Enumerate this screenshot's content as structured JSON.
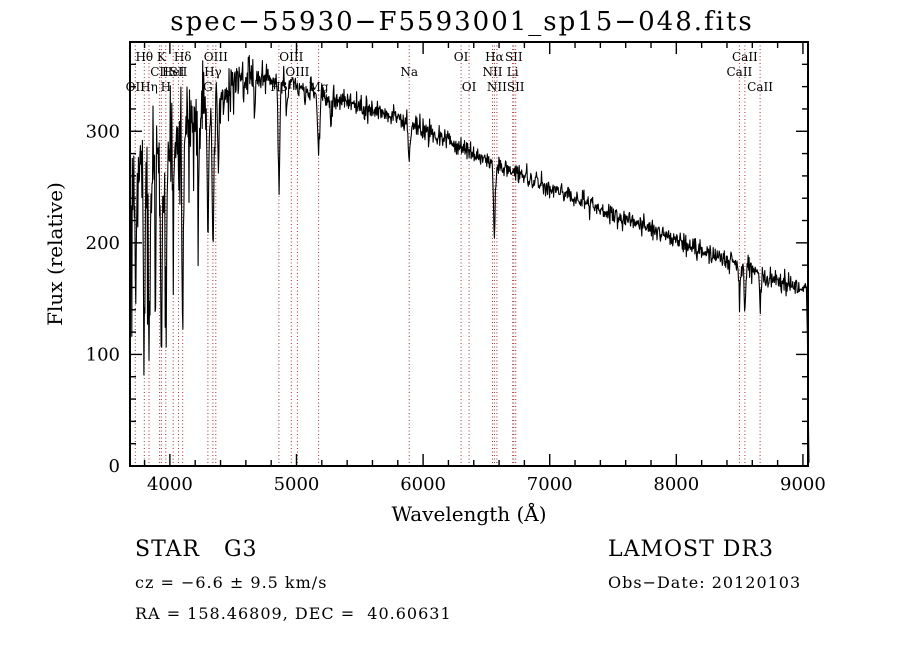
{
  "figure": {
    "title": "spec−55930−F5593001_sp15−048.fits"
  },
  "chart_data": {
    "type": "line",
    "title": "spec−55930−F5593001_sp15−048.fits",
    "xlabel": "Wavelength (Å)",
    "ylabel": "Flux (relative)",
    "xlim": [
      3685,
      9040
    ],
    "ylim": [
      0,
      380
    ],
    "xticks": [
      4000,
      5000,
      6000,
      7000,
      8000,
      9000
    ],
    "yticks": [
      0,
      100,
      200,
      300
    ],
    "x_minor_step": 200,
    "y_minor_step": 20,
    "grid": false,
    "line_color": "#000000",
    "marker_color": "#a03030",
    "continuum": [
      [
        3690,
        252
      ],
      [
        3800,
        262
      ],
      [
        3900,
        272
      ],
      [
        4000,
        288
      ],
      [
        4100,
        302
      ],
      [
        4200,
        314
      ],
      [
        4300,
        325
      ],
      [
        4400,
        334
      ],
      [
        4500,
        342
      ],
      [
        4600,
        348
      ],
      [
        4700,
        350
      ],
      [
        4800,
        348
      ],
      [
        4900,
        344
      ],
      [
        5000,
        340
      ],
      [
        5200,
        333
      ],
      [
        5400,
        327
      ],
      [
        5600,
        320
      ],
      [
        5800,
        311
      ],
      [
        6000,
        302
      ],
      [
        6200,
        291
      ],
      [
        6400,
        280
      ],
      [
        6600,
        269
      ],
      [
        6800,
        259
      ],
      [
        7000,
        250
      ],
      [
        7200,
        240
      ],
      [
        7400,
        230
      ],
      [
        7600,
        221
      ],
      [
        7800,
        212
      ],
      [
        8000,
        203
      ],
      [
        8200,
        193
      ],
      [
        8400,
        184
      ],
      [
        8600,
        175
      ],
      [
        8800,
        166
      ],
      [
        9000,
        158
      ],
      [
        9040,
        155
      ]
    ],
    "noise_sigma": [
      [
        3690,
        38
      ],
      [
        3850,
        34
      ],
      [
        4000,
        26
      ],
      [
        4200,
        18
      ],
      [
        4400,
        12
      ],
      [
        4700,
        8
      ],
      [
        5000,
        6
      ],
      [
        5500,
        5
      ],
      [
        6000,
        4.5
      ],
      [
        6500,
        4
      ],
      [
        7000,
        4
      ],
      [
        7500,
        4
      ],
      [
        8000,
        4.5
      ],
      [
        8600,
        5
      ],
      [
        9040,
        5
      ]
    ],
    "blue_spike_amplitude": [
      [
        3690,
        120
      ],
      [
        3900,
        115
      ],
      [
        4100,
        85
      ],
      [
        4300,
        55
      ],
      [
        4500,
        25
      ]
    ],
    "absorption_lines": [
      {
        "name": "OII",
        "wavelength": 3727,
        "depth": 70,
        "sigma": 6
      },
      {
        "name": "Hθ",
        "wavelength": 3798,
        "depth": 130,
        "sigma": 6
      },
      {
        "name": "Hη",
        "wavelength": 3835,
        "depth": 145,
        "sigma": 6
      },
      {
        "name": "CaII K",
        "wavelength": 3933,
        "depth": 165,
        "sigma": 7
      },
      {
        "name": "CaII H",
        "wavelength": 3968,
        "depth": 155,
        "sigma": 7
      },
      {
        "name": "HeI",
        "wavelength": 4026,
        "depth": 55,
        "sigma": 5
      },
      {
        "name": "SII",
        "wavelength": 4068,
        "depth": 50,
        "sigma": 5
      },
      {
        "name": "Hδ",
        "wavelength": 4101,
        "depth": 150,
        "sigma": 7
      },
      {
        "name": "CaI",
        "wavelength": 4226,
        "depth": 80,
        "sigma": 5
      },
      {
        "name": "G band",
        "wavelength": 4300,
        "depth": 95,
        "sigma": 8
      },
      {
        "name": "Hγ",
        "wavelength": 4340,
        "depth": 135,
        "sigma": 7
      },
      {
        "name": "FeI",
        "wavelength": 4383,
        "depth": 75,
        "sigma": 5
      },
      {
        "name": "FeI",
        "wavelength": 4668,
        "depth": 35,
        "sigma": 5
      },
      {
        "name": "Hβ",
        "wavelength": 4861,
        "depth": 95,
        "sigma": 7
      },
      {
        "name": "FeI",
        "wavelength": 4920,
        "depth": 30,
        "sigma": 5
      },
      {
        "name": "Mg b",
        "wavelength": 5175,
        "depth": 50,
        "sigma": 9
      },
      {
        "name": "FeI",
        "wavelength": 5270,
        "depth": 28,
        "sigma": 6
      },
      {
        "name": "Na D",
        "wavelength": 5890,
        "depth": 32,
        "sigma": 7
      },
      {
        "name": "Hα",
        "wavelength": 6563,
        "depth": 65,
        "sigma": 7
      },
      {
        "name": "CaII",
        "wavelength": 8498,
        "depth": 28,
        "sigma": 6
      },
      {
        "name": "CaII",
        "wavelength": 8542,
        "depth": 38,
        "sigma": 6
      },
      {
        "name": "CaII",
        "wavelength": 8662,
        "depth": 32,
        "sigma": 6
      }
    ],
    "right_edge_drop": {
      "start": 9030,
      "end": 9048
    },
    "spectral_markers": [
      {
        "label": "OII",
        "wavelength": 3727,
        "row": 3
      },
      {
        "label": "Hθ",
        "wavelength": 3798,
        "row": 1
      },
      {
        "label": "Hη",
        "wavelength": 3835,
        "row": 3
      },
      {
        "label": "CII",
        "wavelength": 3919,
        "row": 2
      },
      {
        "label": "K",
        "wavelength": 3933,
        "row": 1
      },
      {
        "label": "H",
        "wavelength": 3968,
        "row": 3
      },
      {
        "label": "HeI",
        "wavelength": 4026,
        "row": 2
      },
      {
        "label": "SII",
        "wavelength": 4068,
        "row": 2
      },
      {
        "label": "Hδ",
        "wavelength": 4101,
        "row": 1
      },
      {
        "label": "G",
        "wavelength": 4300,
        "row": 3
      },
      {
        "label": "Hγ",
        "wavelength": 4340,
        "row": 2
      },
      {
        "label": "OIII",
        "wavelength": 4363,
        "row": 1
      },
      {
        "label": "Hβ",
        "wavelength": 4861,
        "row": 3
      },
      {
        "label": "OIII",
        "wavelength": 4959,
        "row": 1
      },
      {
        "label": "OIII",
        "wavelength": 5007,
        "row": 2
      },
      {
        "label": "Mg",
        "wavelength": 5175,
        "row": 3
      },
      {
        "label": "Na",
        "wavelength": 5890,
        "row": 2
      },
      {
        "label": "OI",
        "wavelength": 6300,
        "row": 1
      },
      {
        "label": "OI",
        "wavelength": 6363,
        "row": 3
      },
      {
        "label": "NII",
        "wavelength": 6548,
        "row": 2
      },
      {
        "label": "Hα",
        "wavelength": 6563,
        "row": 1
      },
      {
        "label": "NII",
        "wavelength": 6583,
        "row": 3
      },
      {
        "label": "Li",
        "wavelength": 6708,
        "row": 2
      },
      {
        "label": "SII",
        "wavelength": 6716,
        "row": 1
      },
      {
        "label": "SII",
        "wavelength": 6731,
        "row": 3
      },
      {
        "label": "CaII",
        "wavelength": 8498,
        "row": 2
      },
      {
        "label": "CaII",
        "wavelength": 8542,
        "row": 1
      },
      {
        "label": "CaII",
        "wavelength": 8662,
        "row": 3
      }
    ]
  },
  "annotations": {
    "class_label": "STAR   G3",
    "survey": "LAMOST DR3",
    "cz": "cz = −6.6 ± 9.5 km/s",
    "obs_date": "Obs−Date: 20120103",
    "coords": "RA = 158.46809, DEC =  40.60631"
  }
}
